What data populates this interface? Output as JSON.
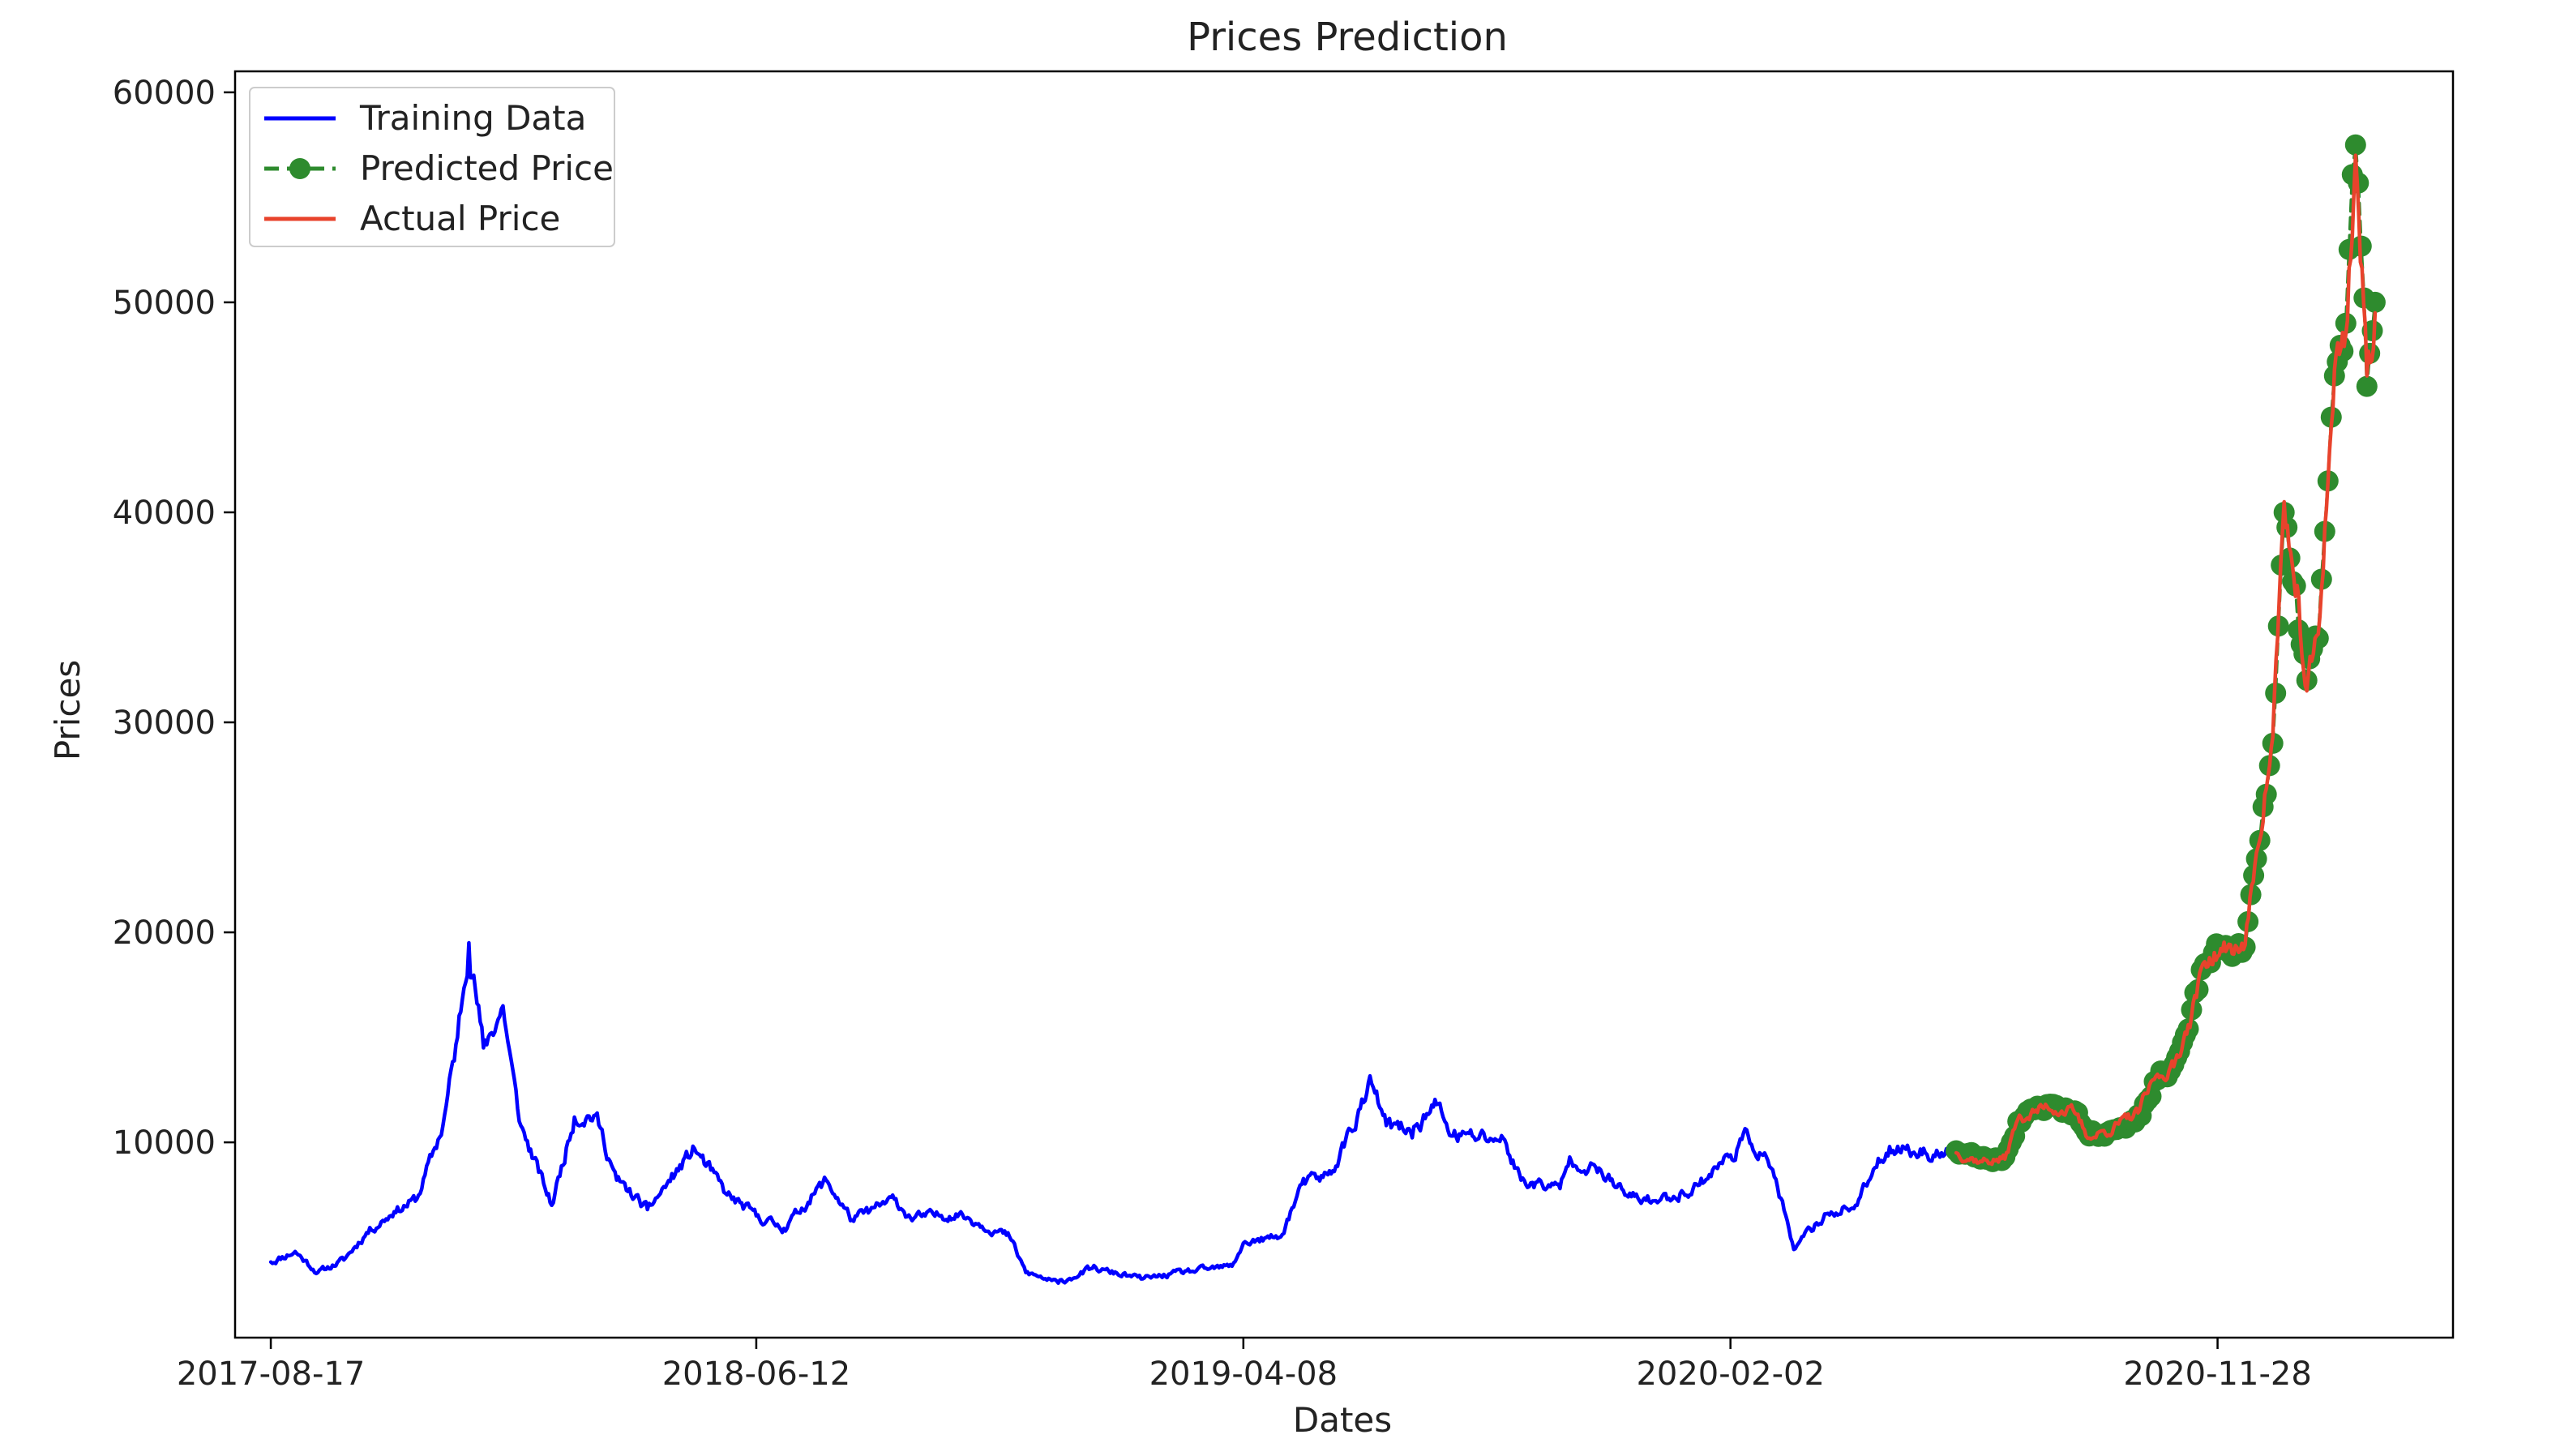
{
  "chart_data": {
    "type": "line",
    "title": "Prices Prediction",
    "xlabel": "Dates",
    "ylabel": "Prices",
    "x_ticks": [
      "2017-08-17",
      "2018-06-12",
      "2019-04-08",
      "2020-02-02",
      "2020-11-28"
    ],
    "y_ticks": [
      10000,
      20000,
      30000,
      40000,
      50000,
      60000
    ],
    "xlim": [
      "2017-07-26",
      "2021-04-22"
    ],
    "ylim": [
      700,
      61000
    ],
    "grid": false,
    "legend_position": "top-left",
    "series": [
      {
        "name": "Training Data",
        "color": "#0000ff",
        "style": "solid",
        "points": [
          [
            "2017-08-17",
            4300
          ],
          [
            "2017-09-01",
            4800
          ],
          [
            "2017-09-15",
            3800
          ],
          [
            "2017-10-01",
            4400
          ],
          [
            "2017-10-15",
            5700
          ],
          [
            "2017-11-01",
            6700
          ],
          [
            "2017-11-15",
            7300
          ],
          [
            "2017-12-01",
            10800
          ],
          [
            "2017-12-10",
            15000
          ],
          [
            "2017-12-17",
            19500
          ],
          [
            "2017-12-26",
            14500
          ],
          [
            "2018-01-07",
            16500
          ],
          [
            "2018-01-17",
            11000
          ],
          [
            "2018-02-06",
            7000
          ],
          [
            "2018-02-20",
            11200
          ],
          [
            "2018-03-05",
            11300
          ],
          [
            "2018-03-18",
            8200
          ],
          [
            "2018-04-06",
            6800
          ],
          [
            "2018-05-05",
            9700
          ],
          [
            "2018-05-25",
            7500
          ],
          [
            "2018-06-12",
            6500
          ],
          [
            "2018-06-29",
            5900
          ],
          [
            "2018-07-25",
            8200
          ],
          [
            "2018-08-10",
            6300
          ],
          [
            "2018-09-05",
            7300
          ],
          [
            "2018-09-15",
            6400
          ],
          [
            "2018-10-15",
            6600
          ],
          [
            "2018-11-15",
            5500
          ],
          [
            "2018-11-25",
            3800
          ],
          [
            "2018-12-15",
            3300
          ],
          [
            "2019-01-05",
            4000
          ],
          [
            "2019-02-05",
            3500
          ],
          [
            "2019-03-01",
            3800
          ],
          [
            "2019-04-01",
            4100
          ],
          [
            "2019-04-08",
            5200
          ],
          [
            "2019-05-01",
            5500
          ],
          [
            "2019-05-14",
            8000
          ],
          [
            "2019-06-01",
            8500
          ],
          [
            "2019-06-26",
            12800
          ],
          [
            "2019-07-05",
            10800
          ],
          [
            "2019-07-20",
            10500
          ],
          [
            "2019-08-05",
            11800
          ],
          [
            "2019-08-15",
            10300
          ],
          [
            "2019-09-15",
            10200
          ],
          [
            "2019-09-26",
            8200
          ],
          [
            "2019-10-20",
            7800
          ],
          [
            "2019-10-26",
            9300
          ],
          [
            "2019-11-15",
            8500
          ],
          [
            "2019-12-01",
            7400
          ],
          [
            "2019-12-20",
            7200
          ],
          [
            "2020-01-10",
            7800
          ],
          [
            "2020-02-02",
            9400
          ],
          [
            "2020-02-13",
            10300
          ],
          [
            "2020-02-28",
            8700
          ],
          [
            "2020-03-12",
            4900
          ],
          [
            "2020-04-01",
            6600
          ],
          [
            "2020-04-20",
            7000
          ],
          [
            "2020-05-01",
            8800
          ],
          [
            "2020-05-10",
            9800
          ],
          [
            "2020-06-01",
            9500
          ],
          [
            "2020-06-20",
            9500
          ]
        ]
      },
      {
        "name": "Predicted Price",
        "color": "#2e8b2e",
        "style": "dashed",
        "marker": "circle",
        "points": [
          [
            "2020-06-20",
            9600
          ],
          [
            "2020-07-05",
            9200
          ],
          [
            "2020-07-20",
            9300
          ],
          [
            "2020-07-28",
            11000
          ],
          [
            "2020-08-15",
            11800
          ],
          [
            "2020-09-01",
            11500
          ],
          [
            "2020-09-10",
            10300
          ],
          [
            "2020-09-25",
            10600
          ],
          [
            "2020-10-10",
            11300
          ],
          [
            "2020-10-20",
            12900
          ],
          [
            "2020-11-01",
            13700
          ],
          [
            "2020-11-10",
            15400
          ],
          [
            "2020-11-20",
            18500
          ],
          [
            "2020-12-01",
            19200
          ],
          [
            "2020-12-15",
            19300
          ],
          [
            "2020-12-22",
            23500
          ],
          [
            "2021-01-01",
            29000
          ],
          [
            "2021-01-08",
            40000
          ],
          [
            "2021-01-15",
            36500
          ],
          [
            "2021-01-22",
            32000
          ],
          [
            "2021-01-29",
            34000
          ],
          [
            "2021-02-08",
            46500
          ],
          [
            "2021-02-15",
            49000
          ],
          [
            "2021-02-21",
            57500
          ],
          [
            "2021-02-28",
            46000
          ],
          [
            "2021-03-05",
            50000
          ]
        ]
      },
      {
        "name": "Actual Price",
        "color": "#e8432c",
        "style": "solid",
        "points": [
          [
            "2020-06-20",
            9500
          ],
          [
            "2020-07-05",
            9100
          ],
          [
            "2020-07-20",
            9200
          ],
          [
            "2020-07-28",
            11100
          ],
          [
            "2020-08-15",
            11700
          ],
          [
            "2020-09-01",
            11400
          ],
          [
            "2020-09-10",
            10200
          ],
          [
            "2020-09-25",
            10700
          ],
          [
            "2020-10-10",
            11400
          ],
          [
            "2020-10-20",
            13000
          ],
          [
            "2020-11-01",
            13600
          ],
          [
            "2020-11-10",
            15600
          ],
          [
            "2020-11-20",
            18600
          ],
          [
            "2020-12-01",
            19100
          ],
          [
            "2020-12-15",
            19400
          ],
          [
            "2020-12-22",
            23800
          ],
          [
            "2021-01-01",
            29300
          ],
          [
            "2021-01-08",
            40500
          ],
          [
            "2021-01-15",
            36000
          ],
          [
            "2021-01-22",
            31500
          ],
          [
            "2021-01-29",
            34200
          ],
          [
            "2021-02-08",
            46800
          ],
          [
            "2021-02-15",
            48500
          ],
          [
            "2021-02-21",
            57000
          ],
          [
            "2021-02-28",
            46500
          ],
          [
            "2021-03-05",
            49500
          ]
        ]
      }
    ]
  }
}
